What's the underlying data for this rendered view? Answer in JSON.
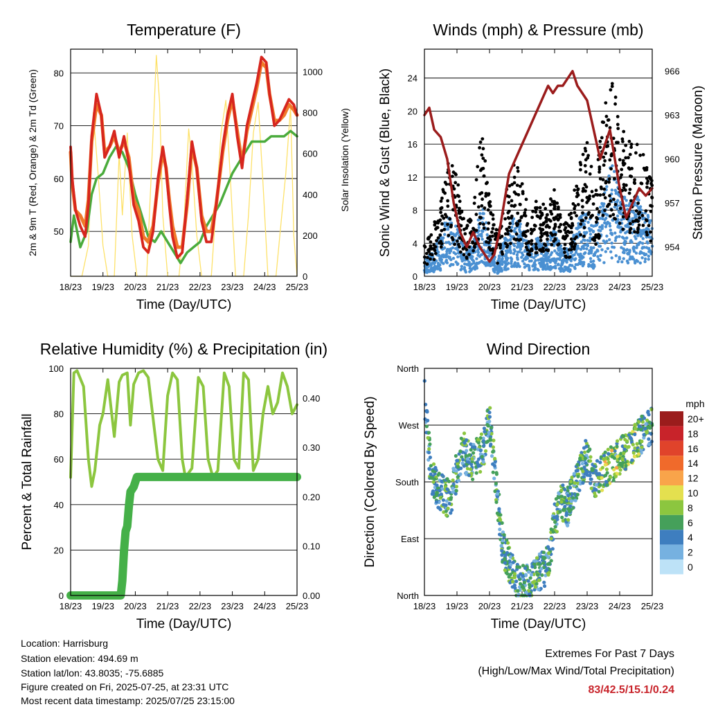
{
  "colors": {
    "temp2m": "#d7261e",
    "temp9m": "#f07a2a",
    "dewpoint": "#4aab3c",
    "solar": "#fde168",
    "wind": "#4a90d2",
    "gust": "#000000",
    "pressure": "#9b1c1c",
    "rh": "#8cc63f",
    "precip": "#45b048",
    "extremes": "#c8232a"
  },
  "time_ticks": [
    "18/23",
    "19/23",
    "20/23",
    "21/23",
    "22/23",
    "23/23",
    "24/23",
    "25/23"
  ],
  "chart_data": [
    {
      "id": "temperature",
      "type": "line",
      "title": "Temperature (F)",
      "xlabel": "Time (Day/UTC)",
      "ylabel": "2m & 9m T (Red, Orange) & 2m Td (Green)",
      "y2label": "Solar Insolation (Yellow)",
      "xlim": [
        0,
        7
      ],
      "ylim": [
        41.5,
        84.5
      ],
      "y2lim": [
        0,
        1110
      ],
      "yticks": [
        50,
        60,
        70,
        80
      ],
      "y2ticks": [
        0,
        200,
        400,
        600,
        800,
        1000
      ],
      "grid": true,
      "series": [
        {
          "key": "t2m",
          "axis": "y",
          "x": [
            0,
            0.05,
            0.15,
            0.3,
            0.45,
            0.55,
            0.65,
            0.8,
            0.95,
            1.05,
            1.2,
            1.35,
            1.5,
            1.65,
            1.8,
            1.95,
            2.1,
            2.25,
            2.4,
            2.55,
            2.7,
            2.85,
            2.95,
            3.05,
            3.15,
            3.3,
            3.45,
            3.6,
            3.75,
            3.9,
            4.05,
            4.2,
            4.35,
            4.5,
            4.7,
            4.85,
            5,
            5.15,
            5.3,
            5.45,
            5.6,
            5.75,
            5.9,
            6.05,
            6.15,
            6.3,
            6.45,
            6.6,
            6.75,
            6.9,
            7
          ],
          "y": [
            66,
            60,
            54,
            51,
            49,
            55,
            68,
            76,
            72,
            64,
            66,
            69,
            64,
            68,
            63,
            55,
            52,
            47,
            46,
            50,
            60,
            66,
            62,
            55,
            49,
            45,
            46,
            56,
            67,
            62,
            52,
            48,
            48,
            55,
            66,
            72,
            76,
            68,
            62,
            70,
            74,
            78,
            83,
            82,
            76,
            70,
            71,
            73,
            75,
            74,
            72
          ]
        },
        {
          "key": "t9m",
          "axis": "y",
          "x": [
            0,
            0.05,
            0.15,
            0.3,
            0.45,
            0.55,
            0.65,
            0.8,
            0.95,
            1.05,
            1.2,
            1.35,
            1.5,
            1.65,
            1.8,
            1.95,
            2.1,
            2.25,
            2.4,
            2.55,
            2.7,
            2.85,
            2.95,
            3.05,
            3.15,
            3.3,
            3.45,
            3.6,
            3.75,
            3.9,
            4.05,
            4.2,
            4.35,
            4.5,
            4.7,
            4.85,
            5,
            5.15,
            5.3,
            5.45,
            5.6,
            5.75,
            5.9,
            6.05,
            6.15,
            6.3,
            6.45,
            6.6,
            6.75,
            6.9,
            7
          ],
          "y": [
            65,
            59,
            54,
            53,
            51,
            56,
            67,
            74,
            72,
            65,
            66,
            68,
            65,
            67,
            64,
            56,
            54,
            49,
            48,
            51,
            59,
            65,
            62,
            56,
            51,
            47,
            47,
            55,
            66,
            62,
            53,
            50,
            50,
            55,
            65,
            71,
            75,
            69,
            63,
            69,
            73,
            77,
            82,
            81,
            76,
            71,
            71,
            72,
            74,
            73,
            72
          ]
        },
        {
          "key": "td",
          "axis": "y",
          "x": [
            0,
            0.1,
            0.3,
            0.5,
            0.65,
            0.8,
            1,
            1.2,
            1.4,
            1.6,
            1.8,
            2,
            2.2,
            2.4,
            2.6,
            2.8,
            3,
            3.2,
            3.4,
            3.6,
            3.8,
            4,
            4.2,
            4.4,
            4.6,
            4.8,
            5,
            5.2,
            5.4,
            5.6,
            5.8,
            6,
            6.2,
            6.4,
            6.6,
            6.8,
            7
          ],
          "y": [
            48,
            53,
            47,
            50,
            57,
            60,
            61,
            64,
            66,
            65,
            62,
            57,
            53,
            49,
            48,
            50,
            48,
            46,
            44,
            46,
            47,
            48,
            51,
            53,
            55,
            58,
            61,
            63,
            65,
            67,
            67,
            67,
            68,
            68,
            68,
            69,
            68
          ]
        },
        {
          "key": "solar",
          "axis": "y2",
          "x": [
            0,
            0.35,
            0.55,
            0.7,
            0.85,
            1.0,
            1.15,
            1.35,
            1.5,
            1.6,
            1.75,
            1.9,
            2.05,
            2.35,
            2.55,
            2.65,
            2.75,
            2.85,
            3.0,
            3.15,
            3.35,
            3.5,
            3.65,
            3.75,
            3.9,
            4.05,
            4.35,
            4.5,
            4.65,
            4.8,
            4.95,
            5.1,
            5.35,
            5.5,
            5.65,
            5.8,
            5.95,
            6.1,
            6.35,
            6.5,
            6.65,
            6.8,
            6.9,
            7
          ],
          "y": [
            0,
            0,
            150,
            800,
            500,
            150,
            0,
            0,
            600,
            300,
            700,
            200,
            0,
            0,
            700,
            1080,
            850,
            300,
            0,
            0,
            0,
            250,
            720,
            560,
            200,
            0,
            0,
            350,
            700,
            860,
            450,
            0,
            0,
            300,
            700,
            850,
            450,
            0,
            0,
            250,
            500,
            830,
            200,
            0
          ]
        }
      ]
    },
    {
      "id": "winds",
      "type": "scatter",
      "title": "Winds (mph) & Pressure (mb)",
      "xlabel": "Time (Day/UTC)",
      "ylabel": "Sonic Wind & Gust (Blue, Black)",
      "y2label": "Station Pressure (Maroon)",
      "xlim": [
        0,
        7
      ],
      "ylim": [
        0,
        27.5
      ],
      "y2lim": [
        952,
        967.5
      ],
      "yticks": [
        0,
        4,
        8,
        12,
        16,
        20,
        24
      ],
      "y2ticks": [
        954,
        957,
        960,
        963,
        966
      ],
      "grid": true,
      "series": [
        {
          "key": "gust_envelope",
          "axis": "y",
          "x": [
            0,
            0.25,
            0.5,
            0.75,
            1.0,
            1.25,
            1.5,
            1.75,
            2.0,
            2.25,
            2.5,
            2.75,
            3.0,
            3.25,
            3.5,
            3.75,
            4.0,
            4.25,
            4.5,
            4.75,
            5.0,
            5.25,
            5.5,
            5.75,
            6.0,
            6.25,
            6.5,
            6.75,
            7
          ],
          "y": [
            4,
            6,
            9,
            15,
            12,
            6,
            8,
            18,
            10,
            5,
            10,
            15,
            12,
            7,
            10,
            8,
            11,
            6,
            8,
            14,
            17,
            11,
            20,
            24,
            20,
            16,
            18,
            15,
            12
          ]
        },
        {
          "key": "wind_envelope",
          "axis": "y",
          "x": [
            0,
            0.25,
            0.5,
            0.75,
            1.0,
            1.25,
            1.5,
            1.75,
            2.0,
            2.25,
            2.5,
            2.75,
            3.0,
            3.25,
            3.5,
            3.75,
            4.0,
            4.25,
            4.5,
            4.75,
            5.0,
            5.25,
            5.5,
            5.75,
            6.0,
            6.25,
            6.5,
            6.75,
            7
          ],
          "y": [
            2,
            3,
            5,
            8,
            6,
            3,
            4,
            9,
            5,
            2,
            5,
            8,
            6,
            4,
            5,
            4,
            6,
            3,
            4,
            7,
            8,
            6,
            10,
            14,
            11,
            9,
            10,
            8,
            7
          ]
        },
        {
          "key": "pressure",
          "axis": "y2",
          "x": [
            0,
            0.15,
            0.3,
            0.5,
            0.7,
            0.9,
            1.1,
            1.3,
            1.5,
            1.7,
            1.85,
            2.0,
            2.15,
            2.3,
            2.45,
            2.6,
            2.8,
            3.0,
            3.2,
            3.4,
            3.6,
            3.8,
            3.95,
            4.1,
            4.25,
            4.4,
            4.55,
            4.7,
            4.85,
            5.0,
            5.2,
            5.4,
            5.55,
            5.7,
            5.85,
            6.0,
            6.2,
            6.4,
            6.6,
            6.8,
            7
          ],
          "y": [
            963,
            963.5,
            962,
            961.5,
            960,
            957,
            955,
            954,
            955,
            954,
            953.5,
            953,
            953.5,
            955,
            957,
            959,
            960,
            961,
            962,
            963,
            964,
            965,
            964.5,
            965,
            965,
            965.5,
            966,
            965,
            964.5,
            964,
            962,
            960,
            961,
            962,
            960,
            958,
            956,
            957,
            958,
            957.5,
            958
          ]
        }
      ]
    },
    {
      "id": "rh_precip",
      "type": "line",
      "title": "Relative Humidity (%) & Precipitation (in)",
      "xlabel": "Time (Day/UTC)",
      "ylabel": "Percent & Total Rainfall",
      "xlim": [
        0,
        7
      ],
      "ylim": [
        0,
        100
      ],
      "y2lim": [
        0,
        0.46
      ],
      "yticks": [
        0,
        20,
        40,
        60,
        80,
        100
      ],
      "y2ticks": [
        "0.00",
        "0.10",
        "0.20",
        "0.30",
        "0.40"
      ],
      "grid": true,
      "series": [
        {
          "key": "rh",
          "axis": "y",
          "x": [
            0,
            0.1,
            0.2,
            0.4,
            0.55,
            0.65,
            0.75,
            0.9,
            1.0,
            1.15,
            1.35,
            1.5,
            1.6,
            1.75,
            1.85,
            1.95,
            2.1,
            2.25,
            2.4,
            2.55,
            2.7,
            2.85,
            3.0,
            3.15,
            3.3,
            3.45,
            3.55,
            3.75,
            3.95,
            4.1,
            4.25,
            4.4,
            4.55,
            4.75,
            4.9,
            5.05,
            5.2,
            5.35,
            5.5,
            5.65,
            5.8,
            5.95,
            6.1,
            6.25,
            6.4,
            6.55,
            6.7,
            6.85,
            7
          ],
          "y": [
            52,
            98,
            99,
            92,
            60,
            48,
            55,
            75,
            80,
            95,
            70,
            94,
            97,
            98,
            75,
            93,
            98,
            99,
            96,
            78,
            60,
            55,
            88,
            98,
            95,
            60,
            52,
            56,
            96,
            92,
            60,
            52,
            55,
            98,
            92,
            60,
            56,
            98,
            95,
            55,
            60,
            80,
            92,
            80,
            85,
            98,
            92,
            80,
            84
          ]
        },
        {
          "key": "precip",
          "axis": "y2",
          "x": [
            0,
            1.55,
            1.6,
            1.65,
            1.7,
            1.75,
            1.8,
            1.85,
            1.95,
            2.05,
            7
          ],
          "y": [
            0,
            0,
            0.03,
            0.09,
            0.13,
            0.14,
            0.18,
            0.21,
            0.22,
            0.24,
            0.24
          ]
        }
      ]
    },
    {
      "id": "wind_direction",
      "type": "scatter",
      "title": "Wind Direction",
      "xlabel": "Time (Day/UTC)",
      "ylabel": "Direction (Colored By Speed)",
      "xlim": [
        0,
        7
      ],
      "ylim": [
        0,
        360
      ],
      "ytick_labels": [
        "North",
        "East",
        "South",
        "West",
        "North"
      ],
      "colorbar": {
        "unit": "mph",
        "labels": [
          "20+",
          "18",
          "16",
          "14",
          "12",
          "10",
          "8",
          "6",
          "4",
          "2",
          "0"
        ],
        "colors": [
          "#9b1c1c",
          "#c8232a",
          "#e0432b",
          "#f06a2b",
          "#f9a44a",
          "#e4e04f",
          "#8cc63f",
          "#45a05a",
          "#3e7ebf",
          "#76b1e0",
          "#bde2f7"
        ]
      },
      "series": [
        {
          "key": "direction_trend",
          "x": [
            0,
            0.2,
            0.4,
            0.6,
            0.8,
            1.0,
            1.2,
            1.4,
            1.6,
            1.8,
            2.0,
            2.4,
            2.8,
            3.2,
            3.4,
            3.6,
            3.8,
            4.0,
            4.2,
            4.4,
            4.6,
            4.8,
            5.0,
            5.2,
            5.4,
            5.6,
            5.8,
            6.0,
            6.2,
            6.4,
            6.6,
            6.8,
            7
          ],
          "y": [
            320,
            190,
            170,
            160,
            150,
            200,
            230,
            210,
            220,
            230,
            280,
            80,
            20,
            20,
            30,
            40,
            50,
            120,
            150,
            140,
            170,
            200,
            220,
            180,
            190,
            200,
            210,
            220,
            230,
            240,
            250,
            260,
            270
          ]
        }
      ]
    }
  ],
  "footer": {
    "location": "Location: Harrisburg",
    "elevation": "Station elevation: 494.69 m",
    "latlon": "Station lat/lon: 43.8035; -75.6885",
    "created": "Figure created on Fri, 2025-07-25, at 23:31 UTC",
    "recent": "Most recent data timestamp: 2025/07/25 23:15:00"
  },
  "extremes": {
    "title": "Extremes For Past 7 Days",
    "subtitle": "(High/Low/Max Wind/Total Precipitation)",
    "values": "83/42.5/15.1/0.24"
  }
}
